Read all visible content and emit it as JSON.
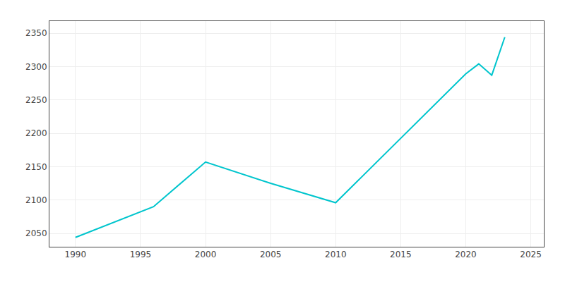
{
  "chart_data": {
    "type": "line",
    "x": [
      1990,
      1996,
      2000,
      2005,
      2010,
      2020,
      2021,
      2022,
      2023
    ],
    "values": [
      2044,
      2090,
      2157,
      2125,
      2096,
      2289,
      2304,
      2287,
      2344
    ],
    "color": "#00C5CD",
    "xlim": [
      1988,
      2026
    ],
    "ylim": [
      2030,
      2368
    ],
    "xticks": [
      1990,
      1995,
      2000,
      2005,
      2010,
      2015,
      2020,
      2025
    ],
    "yticks": [
      2050,
      2100,
      2150,
      2200,
      2250,
      2300,
      2350
    ],
    "grid": true
  }
}
